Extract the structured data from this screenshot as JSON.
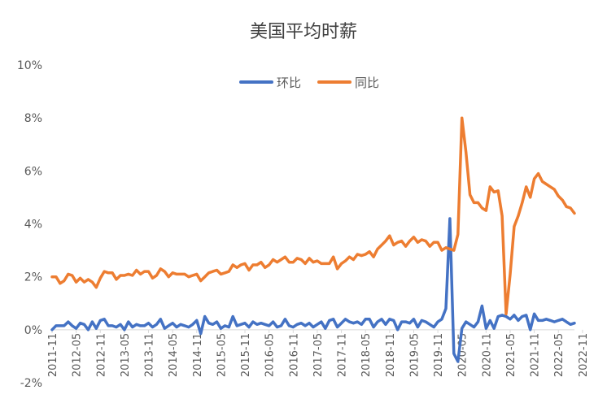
{
  "chart_data": {
    "type": "line",
    "title": "美国平均时薪",
    "xlabel": "",
    "ylabel": "",
    "ylim": [
      -2,
      10
    ],
    "y_ticks": [
      -2,
      0,
      2,
      4,
      6,
      8,
      10
    ],
    "y_tick_labels": [
      "-2%",
      "0%",
      "2%",
      "4%",
      "6%",
      "8%",
      "10%"
    ],
    "x_tick_labels": [
      "2011-11",
      "2012-05",
      "2012-11",
      "2013-05",
      "2013-11",
      "2014-05",
      "2014-11",
      "2015-05",
      "2015-11",
      "2016-05",
      "2016-11",
      "2017-05",
      "2017-11",
      "2018-05",
      "2018-11",
      "2019-05",
      "2019-11",
      "2020-05",
      "2020-11",
      "2021-05",
      "2021-11",
      "2022-05",
      "2022-11"
    ],
    "x_start": "2011-11",
    "x_end": "2023-02",
    "grid": false,
    "legend_position": "top-center",
    "series": [
      {
        "name": "环比",
        "color": "#4472C4",
        "values": [
          0.0,
          0.15,
          0.15,
          0.15,
          0.3,
          0.15,
          0.05,
          0.25,
          0.2,
          0.0,
          0.3,
          0.05,
          0.35,
          0.4,
          0.15,
          0.15,
          0.1,
          0.2,
          0.0,
          0.3,
          0.1,
          0.2,
          0.15,
          0.15,
          0.25,
          0.1,
          0.2,
          0.4,
          0.05,
          0.15,
          0.25,
          0.1,
          0.2,
          0.15,
          0.1,
          0.2,
          0.35,
          -0.15,
          0.5,
          0.25,
          0.2,
          0.3,
          0.05,
          0.15,
          0.1,
          0.5,
          0.15,
          0.2,
          0.25,
          0.1,
          0.3,
          0.2,
          0.25,
          0.2,
          0.15,
          0.3,
          0.1,
          0.15,
          0.4,
          0.15,
          0.1,
          0.2,
          0.25,
          0.15,
          0.25,
          0.1,
          0.2,
          0.3,
          0.05,
          0.35,
          0.4,
          0.1,
          0.25,
          0.4,
          0.3,
          0.25,
          0.3,
          0.2,
          0.4,
          0.4,
          0.1,
          0.3,
          0.4,
          0.2,
          0.4,
          0.35,
          0.0,
          0.3,
          0.3,
          0.25,
          0.4,
          0.1,
          0.35,
          0.3,
          0.2,
          0.1,
          0.3,
          0.4,
          0.8,
          4.2,
          -0.9,
          -1.2,
          0.05,
          0.3,
          0.2,
          0.1,
          0.3,
          0.9,
          0.05,
          0.35,
          0.05,
          0.5,
          0.55,
          0.5,
          0.4,
          0.55,
          0.35,
          0.5,
          0.55,
          0.0,
          0.6,
          0.35,
          0.35,
          0.4,
          0.35,
          0.3,
          0.35,
          0.4,
          0.3,
          0.2,
          0.25
        ]
      },
      {
        "name": "同比",
        "color": "#ED7D31",
        "values": [
          2.0,
          2.0,
          1.75,
          1.85,
          2.1,
          2.05,
          1.8,
          1.95,
          1.8,
          1.9,
          1.8,
          1.6,
          1.95,
          2.2,
          2.15,
          2.15,
          1.9,
          2.05,
          2.05,
          2.1,
          2.05,
          2.25,
          2.1,
          2.2,
          2.2,
          1.95,
          2.05,
          2.3,
          2.2,
          2.0,
          2.15,
          2.1,
          2.1,
          2.1,
          2.0,
          2.05,
          2.1,
          1.85,
          2.0,
          2.15,
          2.2,
          2.25,
          2.1,
          2.15,
          2.2,
          2.45,
          2.35,
          2.45,
          2.5,
          2.25,
          2.45,
          2.45,
          2.55,
          2.35,
          2.45,
          2.65,
          2.55,
          2.65,
          2.75,
          2.55,
          2.55,
          2.7,
          2.65,
          2.5,
          2.7,
          2.55,
          2.6,
          2.5,
          2.5,
          2.5,
          2.75,
          2.3,
          2.5,
          2.6,
          2.75,
          2.65,
          2.85,
          2.8,
          2.85,
          2.95,
          2.75,
          3.05,
          3.2,
          3.35,
          3.55,
          3.2,
          3.3,
          3.35,
          3.15,
          3.35,
          3.5,
          3.3,
          3.4,
          3.35,
          3.15,
          3.3,
          3.3,
          3.0,
          3.1,
          3.05,
          3.0,
          3.6,
          8.0,
          6.7,
          5.1,
          4.8,
          4.8,
          4.6,
          4.5,
          5.4,
          5.2,
          5.25,
          4.3,
          0.6,
          2.1,
          3.9,
          4.3,
          4.8,
          5.4,
          5.0,
          5.7,
          5.9,
          5.6,
          5.5,
          5.4,
          5.3,
          5.05,
          4.9,
          4.65,
          4.6,
          4.4
        ]
      }
    ]
  }
}
